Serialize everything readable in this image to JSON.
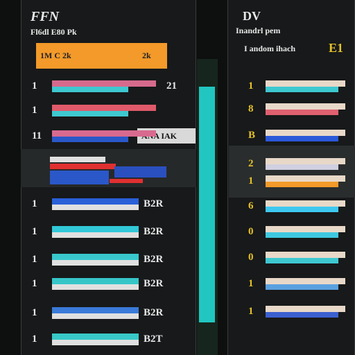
{
  "left": {
    "title": "FFN",
    "subtitle": "Fl6dl E80 Pk",
    "header": {
      "left": "1M  C  2k",
      "right": "2k"
    },
    "tag": "ANA IAK",
    "rows": [
      {
        "label": "1",
        "value": "21"
      },
      {
        "label": "1"
      },
      {
        "label": "11"
      },
      {
        "label": "1",
        "value": "B2R"
      },
      {
        "label": "1",
        "value": "B2R"
      },
      {
        "label": "1",
        "value": "B2R"
      },
      {
        "label": "1",
        "value": "B2R"
      },
      {
        "label": "1",
        "value": "B2R"
      },
      {
        "label": "1",
        "value": "B2T"
      }
    ]
  },
  "right": {
    "title": "DV",
    "subtitle": "Inandrl pem",
    "label": "I andom  ihach",
    "badge": "E1",
    "rows": [
      {
        "label": "1"
      },
      {
        "label": "8"
      },
      {
        "label": "B"
      },
      {
        "label": "2"
      },
      {
        "label": "1"
      },
      {
        "label": "6"
      },
      {
        "label": "0"
      },
      {
        "label": "0"
      },
      {
        "label": "1"
      },
      {
        "label": "1"
      }
    ]
  }
}
